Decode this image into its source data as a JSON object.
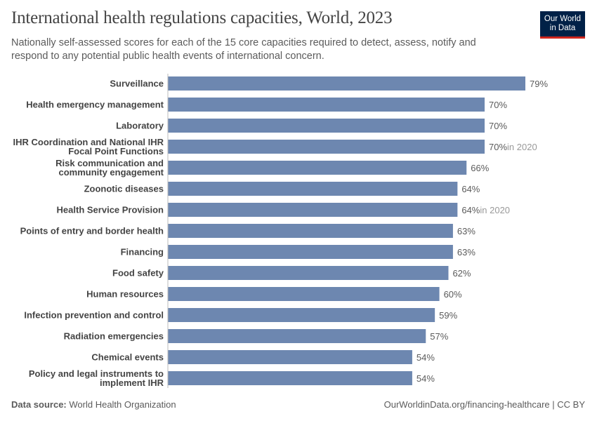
{
  "title": "International health regulations capacities, World, 2023",
  "subtitle": "Nationally self-assessed scores for each of the 15 core capacities required to detect, assess, notify and respond to any potential public health events of international concern.",
  "logo": {
    "line1": "Our World",
    "line2": "in Data"
  },
  "footer": {
    "source_label": "Data source:",
    "source_value": "World Health Organization",
    "url": "OurWorldinData.org/financing-healthcare | CC BY"
  },
  "colors": {
    "bar": "#6d87b0",
    "label": "#444444",
    "value": "#5b5b5b",
    "note": "#999999",
    "logo_bg": "#002147",
    "logo_accent": "#ce261e"
  },
  "chart_data": {
    "type": "bar",
    "orientation": "horizontal",
    "unit": "%",
    "xlim": [
      0,
      79
    ],
    "grid": false,
    "categories": [
      [
        "Surveillance"
      ],
      [
        "Health emergency management"
      ],
      [
        "Laboratory"
      ],
      [
        "IHR Coordination and National IHR",
        "Focal Point Functions"
      ],
      [
        "Risk communication and",
        "community engagement"
      ],
      [
        "Zoonotic diseases"
      ],
      [
        "Health Service Provision"
      ],
      [
        "Points of entry and border health"
      ],
      [
        "Financing"
      ],
      [
        "Food safety"
      ],
      [
        "Human resources"
      ],
      [
        "Infection prevention and control"
      ],
      [
        "Radiation emergencies"
      ],
      [
        "Chemical events"
      ],
      [
        "Policy and legal instruments to",
        "implement IHR"
      ]
    ],
    "values": [
      79,
      70,
      70,
      70,
      66,
      64,
      64,
      63,
      63,
      62,
      60,
      59,
      57,
      54,
      54
    ],
    "notes": [
      "",
      "",
      "",
      "in 2020",
      "",
      "",
      "in 2020",
      "",
      "",
      "",
      "",
      "",
      "",
      "",
      ""
    ]
  }
}
